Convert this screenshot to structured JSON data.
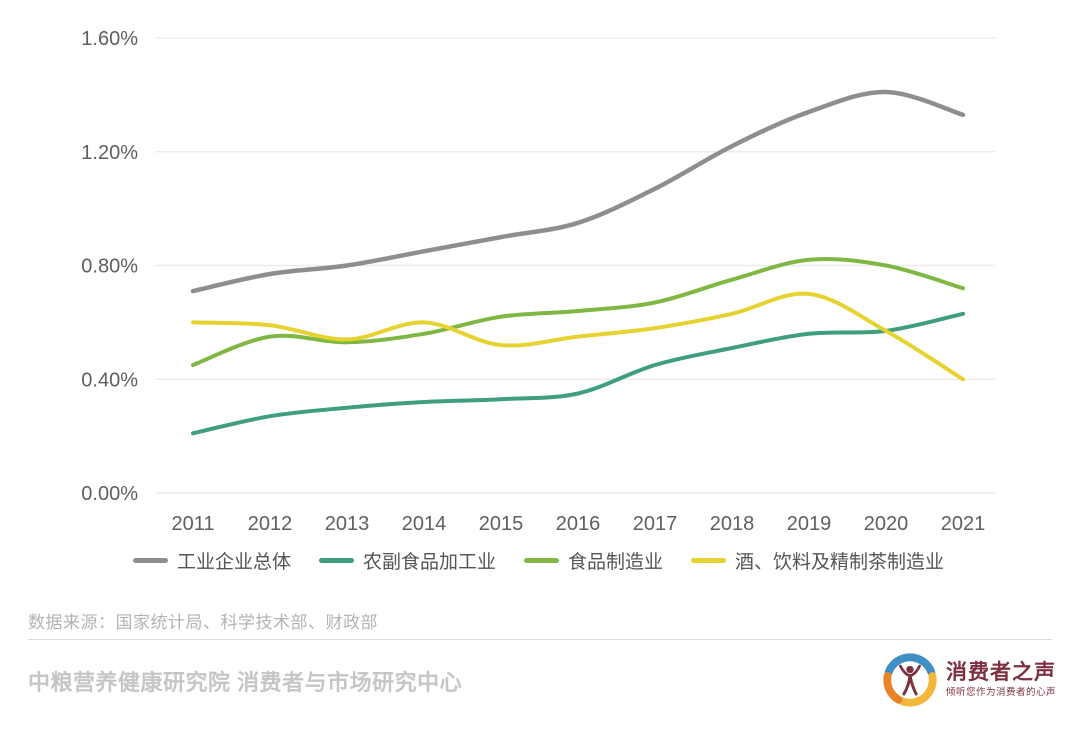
{
  "chart_data": {
    "type": "line",
    "title": "",
    "x": [
      "2011",
      "2012",
      "2013",
      "2014",
      "2015",
      "2016",
      "2017",
      "2018",
      "2019",
      "2020",
      "2021"
    ],
    "series": [
      {
        "name": "工业企业总体",
        "color": "#8e8e8e",
        "stroke_width": 4.5,
        "values": [
          0.71,
          0.77,
          0.8,
          0.85,
          0.9,
          0.95,
          1.07,
          1.22,
          1.34,
          1.41,
          1.33
        ]
      },
      {
        "name": "农副食品加工业",
        "color": "#3f9f7b",
        "stroke_width": 4,
        "values": [
          0.21,
          0.27,
          0.3,
          0.32,
          0.33,
          0.35,
          0.45,
          0.51,
          0.56,
          0.57,
          0.63
        ]
      },
      {
        "name": "食品制造业",
        "color": "#80b742",
        "stroke_width": 4,
        "values": [
          0.45,
          0.55,
          0.53,
          0.56,
          0.62,
          0.64,
          0.67,
          0.75,
          0.82,
          0.8,
          0.72
        ]
      },
      {
        "name": "酒、饮料及精制茶制造业",
        "color": "#e6d230",
        "stroke_width": 4,
        "values": [
          0.6,
          0.59,
          0.54,
          0.6,
          0.52,
          0.55,
          0.58,
          0.63,
          0.7,
          0.57,
          0.4
        ]
      }
    ],
    "ylim": [
      0,
      1.6
    ],
    "ytick_values": [
      0,
      0.4,
      0.8,
      1.2,
      1.6
    ],
    "ytick_labels": [
      "0.00%",
      "0.40%",
      "0.80%",
      "1.20%",
      "1.60%"
    ],
    "grid": "horizontal",
    "gridline_color": "#e9e9e9",
    "legend_position": "bottom"
  },
  "source_note": "数据来源：国家统计局、科学技术部、财政部",
  "footer": {
    "org": "中粮营养健康研究院 消费者与市场研究中心"
  },
  "logo": {
    "title": "消费者之声",
    "tagline": "倾听您作为消费者的心声",
    "colors": {
      "blue": "#3f8fc5",
      "orange": "#e8832a",
      "yellow": "#f3b73c",
      "maroon": "#7d3040"
    }
  }
}
